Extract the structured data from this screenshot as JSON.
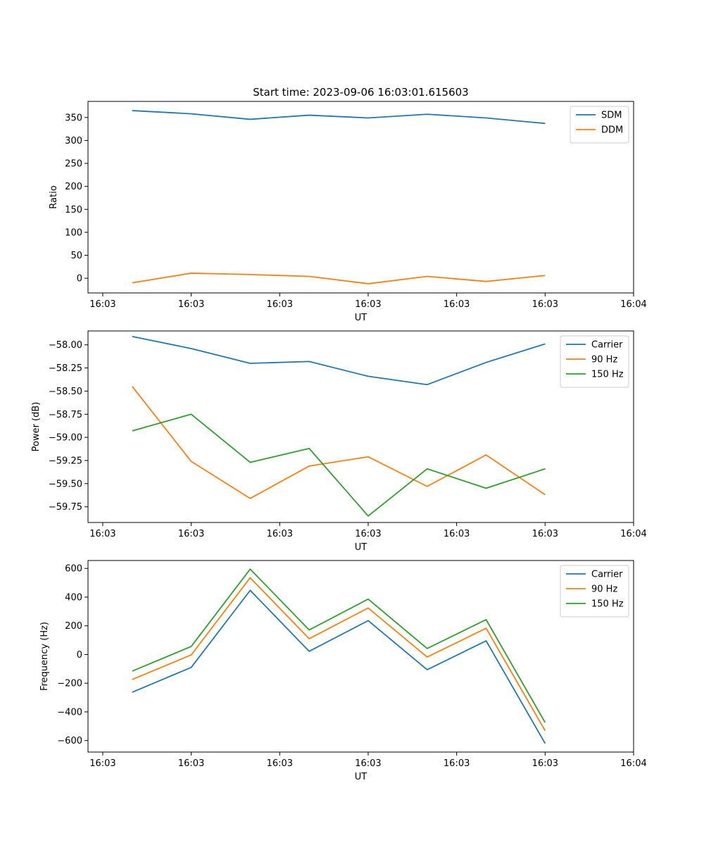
{
  "figure_title": "Start time: 2023-09-06 16:03:01.615603",
  "colors": {
    "blue": "#1f77b4",
    "orange": "#ff7f0e",
    "green": "#2ca02c"
  },
  "chart_data": [
    {
      "type": "line",
      "title": "Start time: 2023-09-06 16:03:01.615603",
      "xlabel": "UT",
      "ylabel": "Ratio",
      "xlim": [
        -0.75,
        8.5
      ],
      "ylim": [
        -32,
        385
      ],
      "x_tick_positions": [
        -0.5,
        1,
        2.5,
        4,
        5.5,
        7,
        8.5
      ],
      "x_tick_labels": [
        "16:03",
        "16:03",
        "16:03",
        "16:03",
        "16:03",
        "16:03",
        "16:04"
      ],
      "y_ticks": [
        0,
        50,
        100,
        150,
        200,
        250,
        300,
        350
      ],
      "legend_position": "top-right",
      "x": [
        0,
        1,
        2,
        3,
        4,
        5,
        6,
        7
      ],
      "series": [
        {
          "name": "SDM",
          "color": "#1f77b4",
          "values": [
            365,
            358,
            346,
            355,
            349,
            357,
            349,
            337
          ]
        },
        {
          "name": "DDM",
          "color": "#ff7f0e",
          "values": [
            -10,
            11,
            8,
            4,
            -12,
            4,
            -7,
            6
          ]
        }
      ]
    },
    {
      "type": "line",
      "title": "",
      "xlabel": "UT",
      "ylabel": "Power (dB)",
      "xlim": [
        -0.75,
        8.5
      ],
      "ylim": [
        -59.92,
        -57.85
      ],
      "x_tick_positions": [
        -0.5,
        1,
        2.5,
        4,
        5.5,
        7,
        8.5
      ],
      "x_tick_labels": [
        "16:03",
        "16:03",
        "16:03",
        "16:03",
        "16:03",
        "16:03",
        "16:04"
      ],
      "y_ticks": [
        -58.0,
        -58.25,
        -58.5,
        -58.75,
        -59.0,
        -59.25,
        -59.5,
        -59.75
      ],
      "y_tick_labels": [
        "−58.00",
        "−58.25",
        "−58.50",
        "−58.75",
        "−59.00",
        "−59.25",
        "−59.50",
        "−59.75"
      ],
      "legend_position": "top-right",
      "x": [
        0,
        1,
        2,
        3,
        4,
        5,
        6,
        7
      ],
      "series": [
        {
          "name": "Carrier",
          "color": "#1f77b4",
          "values": [
            -57.91,
            -58.04,
            -58.2,
            -58.18,
            -58.34,
            -58.43,
            -58.19,
            -57.99
          ]
        },
        {
          "name": "90 Hz",
          "color": "#ff7f0e",
          "values": [
            -58.45,
            -59.26,
            -59.66,
            -59.31,
            -59.21,
            -59.53,
            -59.19,
            -59.62
          ]
        },
        {
          "name": "150 Hz",
          "color": "#2ca02c",
          "values": [
            -58.93,
            -58.75,
            -59.27,
            -59.12,
            -59.85,
            -59.34,
            -59.55,
            -59.34
          ]
        }
      ]
    },
    {
      "type": "line",
      "title": "",
      "xlabel": "UT",
      "ylabel": "Frequency (Hz)",
      "xlim": [
        -0.75,
        8.5
      ],
      "ylim": [
        -680,
        655
      ],
      "x_tick_positions": [
        -0.5,
        1,
        2.5,
        4,
        5.5,
        7,
        8.5
      ],
      "x_tick_labels": [
        "16:03",
        "16:03",
        "16:03",
        "16:03",
        "16:03",
        "16:03",
        "16:04"
      ],
      "y_ticks": [
        -600,
        -400,
        -200,
        0,
        200,
        400,
        600
      ],
      "y_tick_labels": [
        "−600",
        "−400",
        "−200",
        "0",
        "200",
        "400",
        "600"
      ],
      "legend_position": "top-right",
      "x": [
        0,
        1,
        2,
        3,
        4,
        5,
        6,
        7
      ],
      "series": [
        {
          "name": "Carrier",
          "color": "#1f77b4",
          "values": [
            -263,
            -90,
            447,
            22,
            236,
            -106,
            95,
            -620
          ]
        },
        {
          "name": "90 Hz",
          "color": "#ff7f0e",
          "values": [
            -174,
            -3,
            535,
            110,
            324,
            -18,
            183,
            -531
          ]
        },
        {
          "name": "150 Hz",
          "color": "#2ca02c",
          "values": [
            -116,
            56,
            595,
            171,
            386,
            42,
            243,
            -474
          ]
        }
      ]
    }
  ]
}
